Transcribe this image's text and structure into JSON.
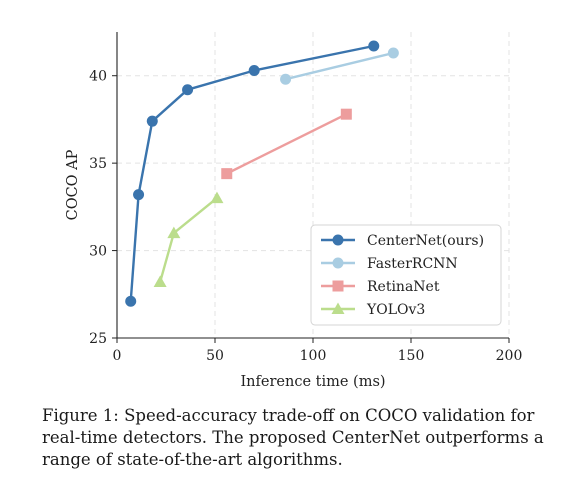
{
  "chart_data": {
    "type": "line",
    "title": "",
    "xlabel": "Inference time (ms)",
    "ylabel": "COCO AP",
    "xlim": [
      0,
      200
    ],
    "ylim": [
      25,
      42.5
    ],
    "xticks": [
      0,
      50,
      100,
      150,
      200
    ],
    "yticks": [
      25,
      30,
      35,
      40
    ],
    "grid": true,
    "legend_position": "lower-right",
    "series": [
      {
        "name": "CenterNet(ours)",
        "marker": "circle",
        "color": "#3a74ad",
        "x": [
          7,
          11,
          18,
          36,
          70,
          131
        ],
        "y": [
          27.1,
          33.2,
          37.4,
          39.2,
          40.3,
          41.7
        ]
      },
      {
        "name": "FasterRCNN",
        "marker": "circle",
        "color": "#a9cde2",
        "x": [
          86,
          141
        ],
        "y": [
          39.8,
          41.3
        ]
      },
      {
        "name": "RetinaNet",
        "marker": "square",
        "color": "#ed9d9d",
        "x": [
          56,
          117
        ],
        "y": [
          34.4,
          37.8
        ]
      },
      {
        "name": "YOLOv3",
        "marker": "triangle",
        "color": "#bbdd8c",
        "x": [
          22,
          29,
          51
        ],
        "y": [
          28.2,
          31.0,
          33.0
        ]
      }
    ]
  },
  "caption": {
    "line1": "Figure 1: Speed-accuracy trade-off on COCO validation for",
    "line2": "real-time detectors. The proposed CenterNet outperforms a",
    "line3": "range of state-of-the-art algorithms."
  }
}
